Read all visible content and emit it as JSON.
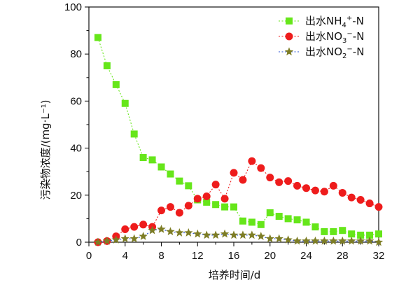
{
  "chart_data": {
    "type": "line",
    "xlabel": "培养时间/d",
    "ylabel": "污染物浓度/(mg·L⁻¹)",
    "xlim": [
      0,
      32
    ],
    "ylim": [
      0,
      100
    ],
    "xticks": [
      0,
      4,
      8,
      12,
      16,
      20,
      24,
      28,
      32
    ],
    "yticks": [
      0,
      20,
      40,
      60,
      80,
      100
    ],
    "grid": false,
    "legend_position": "top-right",
    "x": [
      1,
      2,
      3,
      4,
      5,
      6,
      7,
      8,
      9,
      10,
      11,
      12,
      13,
      14,
      15,
      16,
      17,
      18,
      19,
      20,
      21,
      22,
      23,
      24,
      25,
      26,
      27,
      28,
      29,
      30,
      31,
      32
    ],
    "series": [
      {
        "name": "出水NH4+-N",
        "legend_main": "出水NH",
        "legend_sub": "4",
        "legend_sup": "+",
        "legend_tail": "-N",
        "color": "#66e61a",
        "marker": "square",
        "values": [
          87,
          75,
          67,
          59,
          46,
          36,
          35,
          32,
          29,
          26,
          24,
          18,
          17,
          16,
          15,
          15,
          9,
          8.5,
          7.5,
          12.5,
          11,
          10,
          9.5,
          8.5,
          6.5,
          4.5,
          4.5,
          5,
          3.5,
          3,
          3,
          3.5
        ]
      },
      {
        "name": "出水NO3−-N",
        "legend_main": "出水NO",
        "legend_sub": "3",
        "legend_sup": "−",
        "legend_tail": "-N",
        "color": "#ee1c1c",
        "marker": "circle",
        "values": [
          0,
          0.5,
          2.5,
          5.5,
          6.5,
          7.5,
          6.5,
          13.5,
          15,
          12.5,
          15.5,
          18.5,
          19.5,
          24.5,
          18.5,
          29.5,
          26.5,
          34.5,
          31.5,
          27.5,
          25.5,
          26,
          24,
          23,
          22,
          21.5,
          24,
          21,
          19,
          18,
          16.5,
          15
        ]
      },
      {
        "name": "出水NO2−-N",
        "legend_main": "出水NO",
        "legend_sub": "2",
        "legend_sup": "−",
        "legend_tail": "-N",
        "color": "#7d7d25",
        "linecolor": "#2a52d6",
        "marker": "star",
        "values": [
          0,
          0.5,
          1,
          1.5,
          1.5,
          2.5,
          5,
          5.5,
          4.5,
          4,
          4,
          3.5,
          3,
          3,
          3.5,
          3,
          3,
          3,
          2.5,
          1.5,
          1.5,
          1,
          0.5,
          0.5,
          0.5,
          0.5,
          0.5,
          0.5,
          0.5,
          0.5,
          0.5,
          0
        ]
      }
    ]
  }
}
